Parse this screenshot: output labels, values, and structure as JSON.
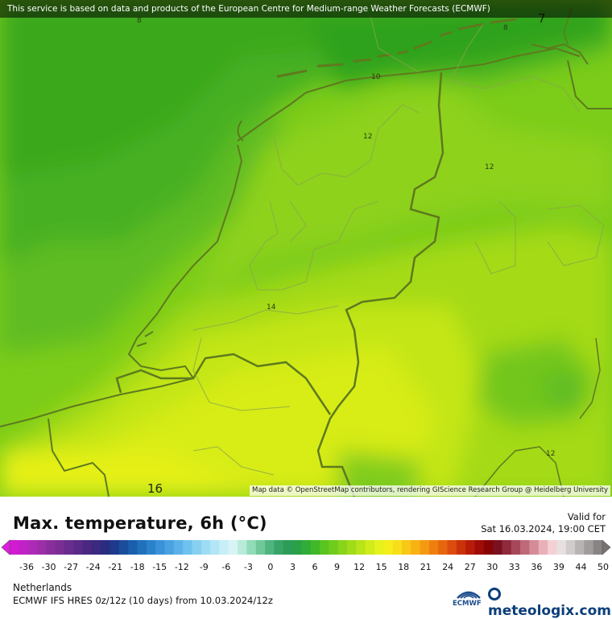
{
  "notice": "This service is based on data and products of the European Centre for Medium-range Weather Forecasts (ECMWF)",
  "attribution": "Map data © OpenStreetMap contributors, rendering GIScience Research Group @ Heidelberg University",
  "title": "Max. temperature, 6h (°C)",
  "valid_label": "Valid for",
  "valid_time": "Sat 16.03.2024, 19:00 CET",
  "region": "Netherlands",
  "model": "ECMWF IFS HRES 0z/12z (10 days) from  10.03.2024/12z",
  "logos": {
    "ecmwf": "ECMWF",
    "meteologix": "meteologix.com"
  },
  "isolines": [
    {
      "label": "8"
    },
    {
      "label": "7"
    },
    {
      "label": "8"
    },
    {
      "label": "10"
    },
    {
      "label": "12"
    },
    {
      "label": "12"
    },
    {
      "label": "14"
    },
    {
      "label": "16"
    },
    {
      "label": "12"
    }
  ],
  "scale": {
    "ticks": [
      "-36",
      "-30",
      "-27",
      "-24",
      "-21",
      "-18",
      "-15",
      "-12",
      "-9",
      "-6",
      "-3",
      "0",
      "3",
      "6",
      "9",
      "12",
      "15",
      "18",
      "21",
      "24",
      "27",
      "30",
      "33",
      "36",
      "39",
      "44",
      "50"
    ],
    "colors": [
      "#d21ad2",
      "#c022c8",
      "#ae2ab8",
      "#9c2ea8",
      "#8a2e9c",
      "#7a2e94",
      "#6a2c8e",
      "#5a2a88",
      "#4a2882",
      "#3a2a80",
      "#2a2c80",
      "#1e3a8c",
      "#1a4e9c",
      "#1a5eac",
      "#2070bc",
      "#2a82cc",
      "#3a92d8",
      "#4aa2e0",
      "#5cb2e8",
      "#70c2ee",
      "#86d0f2",
      "#9cdcf4",
      "#b2e6f6",
      "#c8eef8",
      "#d8f4f4",
      "#b8ecd8",
      "#90dcb8",
      "#70c89a",
      "#50b47e",
      "#38a468",
      "#2c9c58",
      "#2aa048",
      "#30ac38",
      "#40b828",
      "#58c420",
      "#70cc1c",
      "#88d41a",
      "#a0dc18",
      "#b8e418",
      "#d0ec1a",
      "#e6f21c",
      "#f4ee1a",
      "#f8de18",
      "#f8c816",
      "#f8b214",
      "#f49a12",
      "#ee8010",
      "#e6660e",
      "#dc4c0c",
      "#cc320a",
      "#b81c08",
      "#a00c06",
      "#880404",
      "#7a1020",
      "#8e2a3c",
      "#a6485a",
      "#be6a78",
      "#d48c98",
      "#e8b0b8",
      "#f4d0d4",
      "#e8e0e0",
      "#d0cccc",
      "#b8b4b4",
      "#a09c9c",
      "#888484"
    ]
  }
}
